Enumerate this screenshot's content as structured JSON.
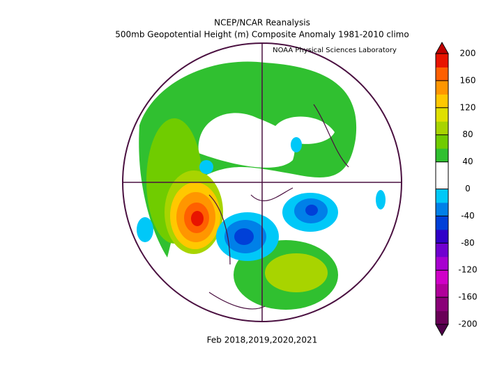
{
  "header": {
    "title": "NCEP/NCAR Reanalysis",
    "subtitle": "500mb Geopotential Height (m) Composite Anomaly 1981-2010 climo",
    "credit": "NOAA Physical Sciences Laboratory"
  },
  "footer": {
    "period": "Feb 2018,2019,2020,2021"
  },
  "colorbar": {
    "lim": [
      -200,
      200
    ],
    "ticks": [
      -200,
      -160,
      -120,
      -80,
      -40,
      0,
      40,
      80,
      120,
      160,
      200
    ],
    "under_color": "#50004a",
    "over_color": "#c00000",
    "colors": [
      "#6a0058",
      "#8a0078",
      "#b0009a",
      "#d000c8",
      "#a800d0",
      "#7000d0",
      "#3000c8",
      "#0040d8",
      "#0080e8",
      "#00c8f8",
      "#ffffff",
      "#ffffff",
      "#30c030",
      "#70cc00",
      "#a8d400",
      "#e0e000",
      "#ffc800",
      "#ff9600",
      "#ff6000",
      "#e81400"
    ]
  }
}
